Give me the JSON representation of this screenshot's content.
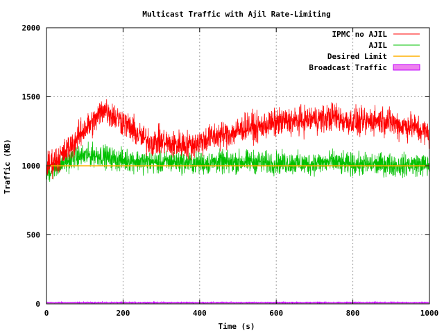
{
  "chart_data": {
    "type": "line",
    "title": "Multicast Traffic with Ajil Rate-Limiting",
    "xlabel": "Time (s)",
    "ylabel": "Traffic (KB)",
    "xlim": [
      0,
      1000
    ],
    "ylim": [
      0,
      2000
    ],
    "xticks": [
      0,
      200,
      400,
      600,
      800,
      1000
    ],
    "yticks": [
      0,
      500,
      1000,
      1500,
      2000
    ],
    "xtick_labels": [
      "0",
      "200",
      "400",
      "600",
      "800",
      "1000"
    ],
    "ytick_labels": [
      "0",
      "500",
      "1000",
      "1500",
      "2000"
    ],
    "grid": true,
    "legend_position": "top-right",
    "series": [
      {
        "name": "IPMC no AJIL",
        "color": "#ff0000",
        "style": "line",
        "x": [
          0,
          25,
          50,
          75,
          100,
          125,
          150,
          175,
          200,
          225,
          250,
          275,
          300,
          325,
          350,
          375,
          400,
          425,
          450,
          475,
          500,
          525,
          550,
          575,
          600,
          625,
          650,
          675,
          700,
          725,
          750,
          775,
          800,
          825,
          850,
          875,
          900,
          925,
          950,
          975,
          1000
        ],
        "y": [
          1000,
          1040,
          1100,
          1180,
          1270,
          1320,
          1420,
          1360,
          1320,
          1260,
          1200,
          1170,
          1180,
          1150,
          1160,
          1150,
          1170,
          1200,
          1220,
          1230,
          1250,
          1290,
          1270,
          1300,
          1310,
          1320,
          1320,
          1330,
          1340,
          1340,
          1360,
          1330,
          1320,
          1310,
          1330,
          1330,
          1320,
          1290,
          1290,
          1260,
          1230
        ],
        "noise": 75
      },
      {
        "name": "AJIL",
        "color": "#00c000",
        "style": "line",
        "x": [
          0,
          25,
          50,
          75,
          100,
          125,
          150,
          175,
          200,
          225,
          250,
          275,
          300,
          325,
          350,
          375,
          400,
          425,
          450,
          475,
          500,
          525,
          550,
          575,
          600,
          625,
          650,
          675,
          700,
          725,
          750,
          775,
          800,
          825,
          850,
          875,
          900,
          925,
          950,
          975,
          1000
        ],
        "y": [
          950,
          990,
          1030,
          1060,
          1070,
          1080,
          1070,
          1050,
          1040,
          1040,
          1030,
          1030,
          1020,
          1030,
          1030,
          1020,
          1020,
          1020,
          1030,
          1020,
          1030,
          1030,
          1030,
          1020,
          1020,
          1020,
          1020,
          1010,
          1020,
          1020,
          1030,
          1010,
          1010,
          1010,
          1010,
          1010,
          1010,
          1000,
          1010,
          1010,
          1000
        ],
        "noise": 60
      },
      {
        "name": "Desired Limit",
        "color": "#ffb000",
        "style": "line",
        "x": [
          0,
          1000
        ],
        "y": [
          1000,
          1000
        ]
      },
      {
        "name": "Broadcast Traffic",
        "color": "#c000ff",
        "fill": "#ee82ee",
        "style": "area",
        "x": [
          0,
          100,
          200,
          300,
          400,
          500,
          600,
          700,
          800,
          900,
          1000
        ],
        "y": [
          10,
          10,
          10,
          10,
          10,
          10,
          10,
          10,
          10,
          10,
          10
        ],
        "noise": 3
      }
    ]
  }
}
